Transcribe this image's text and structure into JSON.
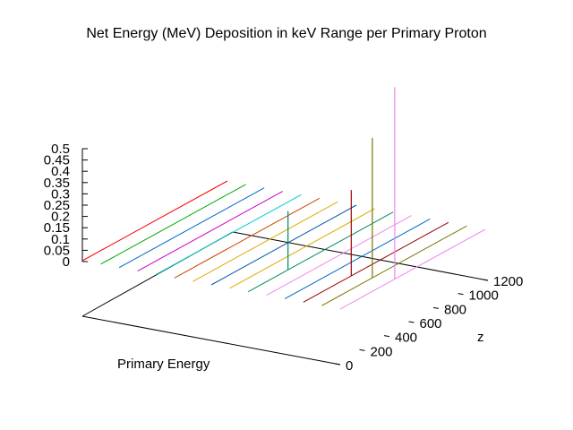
{
  "chart_data": {
    "type": "line",
    "projection": "3d",
    "title": "Net Energy (MeV) Deposition in keV Range per Primary Proton",
    "xlabel": "Primary Energy",
    "ylabel": "z",
    "zlabel": "",
    "z_ticks": [
      "0.5",
      "0.45",
      "0.4",
      "0.35",
      "0.3",
      "0.25",
      "0.2",
      "0.15",
      "0.1",
      "0.05",
      "0"
    ],
    "y_ticks": [
      "0",
      "200",
      "400",
      "600",
      "800",
      "1000",
      "1200"
    ],
    "zlim": [
      0,
      0.5
    ],
    "ylim": [
      0,
      1200
    ],
    "grid": false,
    "series": [
      {
        "color": "#ff0000",
        "values": []
      },
      {
        "color": "#00aa00",
        "values": []
      },
      {
        "color": "#0066cc",
        "values": []
      },
      {
        "color": "#cc00cc",
        "values": []
      },
      {
        "color": "#00cccc",
        "values": []
      },
      {
        "color": "#cc4400",
        "values": []
      },
      {
        "color": "#ddaa00",
        "values": []
      },
      {
        "color": "#0055aa",
        "values": []
      },
      {
        "color": "#ddaa00",
        "values": []
      },
      {
        "color": "#008866",
        "values": [
          {
            "y": 600,
            "z": 0.26
          }
        ]
      },
      {
        "color": "#ee88ee",
        "values": []
      },
      {
        "color": "#0066cc",
        "values": []
      },
      {
        "color": "#990000",
        "values": [
          {
            "y": 720,
            "z": 0.38
          }
        ]
      },
      {
        "color": "#777700",
        "values": [
          {
            "y": 760,
            "z": 0.62
          }
        ]
      },
      {
        "color": "#ee88ee",
        "values": [
          {
            "y": 820,
            "z": 0.85
          }
        ]
      }
    ]
  }
}
